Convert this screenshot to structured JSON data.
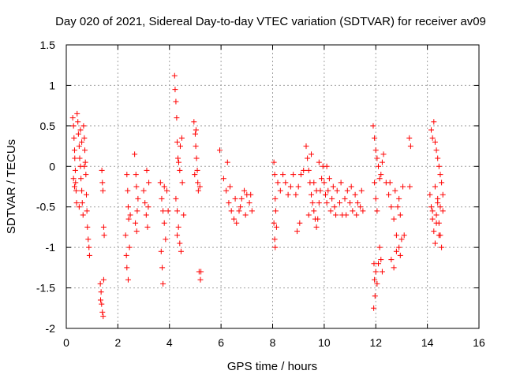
{
  "chart_data": {
    "type": "scatter",
    "title": "Day 020 of 2021, Sidereal Day-to-day VTEC variation (SDTVAR) for receiver av09",
    "xlabel": "GPS time / hours",
    "ylabel": "SDTVAR / TECUs",
    "xlim": [
      0,
      16
    ],
    "ylim": [
      -2,
      1.5
    ],
    "xticks": [
      0,
      2,
      4,
      6,
      8,
      10,
      12,
      14,
      16
    ],
    "yticks": [
      -2,
      -1.5,
      -1,
      -0.5,
      0,
      0.5,
      1,
      1.5
    ],
    "xtick_labels": [
      "0",
      "2",
      "4",
      "6",
      "8",
      "10",
      "12",
      "14",
      "16"
    ],
    "ytick_labels": [
      "-2",
      "-1.5",
      "-1",
      "-0.5",
      "0",
      "0.5",
      "1",
      "1.5"
    ],
    "grid": true,
    "marker": "+",
    "color": "#ff0000",
    "series": [
      {
        "name": "SDTVAR",
        "points": [
          [
            0.25,
            0.6
          ],
          [
            0.28,
            0.5
          ],
          [
            0.3,
            0.35
          ],
          [
            0.32,
            0.2
          ],
          [
            0.33,
            0.1
          ],
          [
            0.35,
            -0.05
          ],
          [
            0.36,
            -0.2
          ],
          [
            0.38,
            -0.3
          ],
          [
            0.4,
            -0.45
          ],
          [
            0.42,
            0.65
          ],
          [
            0.45,
            0.55
          ],
          [
            0.47,
            0.4
          ],
          [
            0.5,
            0.25
          ],
          [
            0.52,
            0.1
          ],
          [
            0.55,
            0.0
          ],
          [
            0.57,
            -0.15
          ],
          [
            0.6,
            -0.3
          ],
          [
            0.62,
            -0.45
          ],
          [
            0.65,
            -0.6
          ],
          [
            0.67,
            0.5
          ],
          [
            0.7,
            0.35
          ],
          [
            0.72,
            0.2
          ],
          [
            0.74,
            0.05
          ],
          [
            0.76,
            -0.1
          ],
          [
            0.78,
            -0.35
          ],
          [
            0.8,
            -0.55
          ],
          [
            0.82,
            -0.75
          ],
          [
            0.85,
            -0.9
          ],
          [
            0.88,
            -1.0
          ],
          [
            0.9,
            -1.1
          ],
          [
            0.28,
            -0.15
          ],
          [
            0.32,
            -0.25
          ],
          [
            0.5,
            -0.5
          ],
          [
            0.55,
            0.45
          ],
          [
            0.6,
            0.3
          ],
          [
            0.7,
            0.0
          ],
          [
            1.38,
            -0.05
          ],
          [
            1.4,
            -0.2
          ],
          [
            1.42,
            -0.3
          ],
          [
            1.45,
            -0.75
          ],
          [
            1.47,
            -0.85
          ],
          [
            1.32,
            -1.45
          ],
          [
            1.35,
            -1.55
          ],
          [
            1.37,
            -1.7
          ],
          [
            1.4,
            -1.8
          ],
          [
            1.43,
            -1.85
          ],
          [
            1.45,
            -1.4
          ],
          [
            1.33,
            -1.65
          ],
          [
            2.35,
            -0.1
          ],
          [
            2.38,
            -0.3
          ],
          [
            2.4,
            -0.5
          ],
          [
            2.42,
            -0.65
          ],
          [
            2.3,
            -0.85
          ],
          [
            2.33,
            -1.1
          ],
          [
            2.35,
            -1.25
          ],
          [
            2.4,
            -1.4
          ],
          [
            2.45,
            -1.0
          ],
          [
            2.48,
            -0.6
          ],
          [
            2.65,
            0.15
          ],
          [
            2.7,
            -0.1
          ],
          [
            2.72,
            -0.25
          ],
          [
            2.75,
            -0.55
          ],
          [
            2.68,
            -0.7
          ],
          [
            2.73,
            -0.8
          ],
          [
            2.78,
            -0.4
          ],
          [
            3.0,
            -0.3
          ],
          [
            3.05,
            -0.45
          ],
          [
            3.1,
            -0.6
          ],
          [
            3.15,
            -0.75
          ],
          [
            3.2,
            -0.2
          ],
          [
            3.12,
            -0.05
          ],
          [
            3.18,
            -0.5
          ],
          [
            3.65,
            -0.2
          ],
          [
            3.7,
            -0.4
          ],
          [
            3.75,
            -0.55
          ],
          [
            3.8,
            -0.7
          ],
          [
            3.85,
            -0.9
          ],
          [
            3.68,
            -1.05
          ],
          [
            3.72,
            -1.25
          ],
          [
            3.75,
            -1.45
          ],
          [
            3.8,
            -0.25
          ],
          [
            3.9,
            -0.3
          ],
          [
            3.95,
            -0.55
          ],
          [
            4.2,
            1.12
          ],
          [
            4.22,
            0.95
          ],
          [
            4.25,
            0.8
          ],
          [
            4.28,
            0.6
          ],
          [
            4.3,
            0.3
          ],
          [
            4.33,
            0.1
          ],
          [
            4.36,
            0.05
          ],
          [
            4.4,
            -0.05
          ],
          [
            4.25,
            -0.4
          ],
          [
            4.3,
            -0.55
          ],
          [
            4.35,
            -0.75
          ],
          [
            4.4,
            -0.95
          ],
          [
            4.45,
            -1.05
          ],
          [
            4.3,
            -0.85
          ],
          [
            4.5,
            -0.2
          ],
          [
            4.55,
            -0.6
          ],
          [
            4.42,
            0.25
          ],
          [
            4.48,
            0.35
          ],
          [
            4.95,
            0.55
          ],
          [
            5.0,
            0.4
          ],
          [
            5.02,
            0.25
          ],
          [
            5.05,
            0.1
          ],
          [
            5.08,
            -0.05
          ],
          [
            5.1,
            -0.2
          ],
          [
            5.12,
            -0.3
          ],
          [
            4.98,
            -0.1
          ],
          [
            5.03,
            0.45
          ],
          [
            5.15,
            -1.3
          ],
          [
            5.2,
            -1.4
          ],
          [
            5.22,
            -1.3
          ],
          [
            5.18,
            -0.25
          ],
          [
            5.95,
            0.2
          ],
          [
            6.1,
            -0.15
          ],
          [
            6.2,
            -0.3
          ],
          [
            6.3,
            -0.45
          ],
          [
            6.4,
            -0.55
          ],
          [
            6.5,
            -0.65
          ],
          [
            6.6,
            -0.7
          ],
          [
            6.7,
            -0.55
          ],
          [
            6.8,
            -0.4
          ],
          [
            6.9,
            -0.3
          ],
          [
            7.0,
            -0.35
          ],
          [
            7.1,
            -0.45
          ],
          [
            7.2,
            -0.55
          ],
          [
            6.35,
            -0.25
          ],
          [
            6.55,
            -0.4
          ],
          [
            6.75,
            -0.5
          ],
          [
            6.95,
            -0.6
          ],
          [
            7.15,
            -0.35
          ],
          [
            6.25,
            0.05
          ],
          [
            8.05,
            0.05
          ],
          [
            8.08,
            -0.1
          ],
          [
            8.1,
            -0.4
          ],
          [
            8.12,
            -0.55
          ],
          [
            8.05,
            -0.7
          ],
          [
            8.08,
            -0.9
          ],
          [
            8.1,
            -1.0
          ],
          [
            8.15,
            -0.75
          ],
          [
            8.2,
            -0.2
          ],
          [
            8.3,
            -0.3
          ],
          [
            8.4,
            -0.1
          ],
          [
            8.5,
            -0.2
          ],
          [
            8.6,
            -0.35
          ],
          [
            8.7,
            -0.25
          ],
          [
            8.8,
            -0.1
          ],
          [
            8.9,
            -0.35
          ],
          [
            9.0,
            -0.25
          ],
          [
            9.1,
            -0.1
          ],
          [
            9.2,
            -0.05
          ],
          [
            8.95,
            -0.8
          ],
          [
            9.05,
            -0.7
          ],
          [
            9.3,
            0.25
          ],
          [
            9.35,
            0.1
          ],
          [
            9.4,
            -0.05
          ],
          [
            9.45,
            -0.2
          ],
          [
            9.5,
            -0.35
          ],
          [
            9.55,
            -0.45
          ],
          [
            9.6,
            -0.55
          ],
          [
            9.65,
            -0.65
          ],
          [
            9.7,
            -0.75
          ],
          [
            9.75,
            -0.65
          ],
          [
            9.8,
            -0.45
          ],
          [
            9.85,
            -0.3
          ],
          [
            9.9,
            -0.15
          ],
          [
            9.95,
            0.0
          ],
          [
            10.0,
            -0.2
          ],
          [
            10.05,
            -0.35
          ],
          [
            10.1,
            -0.45
          ],
          [
            10.15,
            -0.3
          ],
          [
            10.2,
            -0.15
          ],
          [
            10.3,
            -0.4
          ],
          [
            10.4,
            -0.5
          ],
          [
            10.5,
            -0.3
          ],
          [
            10.6,
            -0.45
          ],
          [
            10.7,
            -0.6
          ],
          [
            10.8,
            -0.4
          ],
          [
            10.9,
            -0.3
          ],
          [
            11.0,
            -0.45
          ],
          [
            11.1,
            -0.55
          ],
          [
            11.2,
            -0.35
          ],
          [
            11.3,
            -0.45
          ],
          [
            11.4,
            -0.5
          ],
          [
            11.5,
            -0.55
          ],
          [
            9.4,
            -0.6
          ],
          [
            9.6,
            -0.2
          ],
          [
            9.8,
            0.05
          ],
          [
            10.25,
            -0.55
          ],
          [
            10.35,
            -0.25
          ],
          [
            10.45,
            -0.6
          ],
          [
            10.65,
            -0.2
          ],
          [
            10.85,
            -0.6
          ],
          [
            11.05,
            -0.25
          ],
          [
            11.25,
            -0.6
          ],
          [
            11.45,
            -0.3
          ],
          [
            9.5,
            0.15
          ],
          [
            9.7,
            -0.3
          ],
          [
            10.1,
            0.0
          ],
          [
            11.9,
            0.5
          ],
          [
            11.95,
            0.35
          ],
          [
            12.0,
            0.2
          ],
          [
            12.05,
            0.1
          ],
          [
            12.1,
            0.0
          ],
          [
            12.15,
            -0.15
          ],
          [
            12.2,
            -0.1
          ],
          [
            12.25,
            0.05
          ],
          [
            12.3,
            0.15
          ],
          [
            11.95,
            -0.2
          ],
          [
            12.0,
            -0.4
          ],
          [
            12.05,
            -0.55
          ],
          [
            11.93,
            -1.2
          ],
          [
            11.95,
            -1.4
          ],
          [
            11.97,
            -1.6
          ],
          [
            11.92,
            -1.75
          ],
          [
            12.0,
            -1.3
          ],
          [
            12.05,
            -1.45
          ],
          [
            12.1,
            -1.2
          ],
          [
            12.15,
            -1.0
          ],
          [
            12.2,
            -1.15
          ],
          [
            12.25,
            -1.3
          ],
          [
            12.4,
            -0.2
          ],
          [
            12.5,
            -0.35
          ],
          [
            12.6,
            -0.5
          ],
          [
            12.7,
            -0.65
          ],
          [
            12.8,
            -0.85
          ],
          [
            12.9,
            -1.0
          ],
          [
            12.95,
            -1.1
          ],
          [
            12.6,
            -1.15
          ],
          [
            12.7,
            -1.25
          ],
          [
            12.8,
            -1.05
          ],
          [
            12.9,
            -0.4
          ],
          [
            12.95,
            -0.6
          ],
          [
            13.05,
            -0.25
          ],
          [
            13.1,
            -0.85
          ],
          [
            13.0,
            -0.9
          ],
          [
            12.55,
            -0.2
          ],
          [
            12.75,
            -0.3
          ],
          [
            12.85,
            -0.5
          ],
          [
            13.3,
            0.35
          ],
          [
            13.35,
            0.25
          ],
          [
            13.32,
            -0.25
          ],
          [
            14.1,
            -0.35
          ],
          [
            14.15,
            -0.5
          ],
          [
            14.2,
            -0.65
          ],
          [
            14.25,
            -0.8
          ],
          [
            14.3,
            -0.95
          ],
          [
            14.35,
            -0.6
          ],
          [
            14.4,
            -0.45
          ],
          [
            14.45,
            -0.7
          ],
          [
            14.5,
            -0.85
          ],
          [
            14.55,
            -1.0
          ],
          [
            14.6,
            -0.55
          ],
          [
            14.15,
            0.45
          ],
          [
            14.2,
            0.35
          ],
          [
            14.25,
            0.55
          ],
          [
            14.3,
            0.3
          ],
          [
            14.35,
            0.2
          ],
          [
            14.4,
            0.1
          ],
          [
            14.45,
            0.0
          ],
          [
            14.5,
            -0.1
          ],
          [
            14.55,
            -0.2
          ],
          [
            14.6,
            -0.35
          ],
          [
            14.3,
            -0.25
          ],
          [
            14.4,
            -0.4
          ],
          [
            14.2,
            -0.55
          ],
          [
            14.5,
            -0.5
          ],
          [
            14.45,
            -0.85
          ],
          [
            14.35,
            -0.7
          ]
        ]
      }
    ]
  }
}
